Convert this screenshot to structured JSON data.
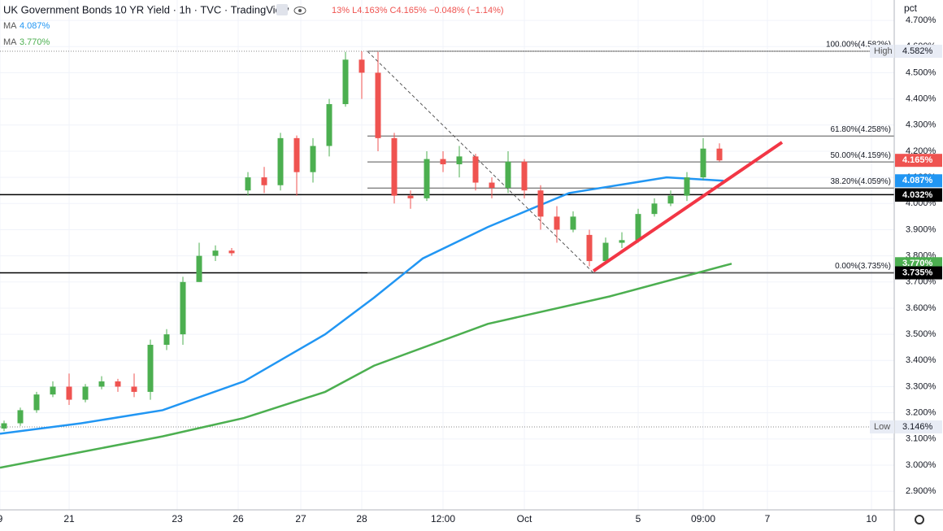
{
  "chart_data": {
    "type": "candlestick",
    "title": "UK Government Bonds 10 YR Yield · 1h · TVC · TradingView",
    "ohlc_text": "13%  L4.163%  C4.165%  −0.048% (−1.14%)",
    "y_unit": "pct",
    "up_color": "#4caf50",
    "down_color": "#ef5350",
    "grid": true,
    "xlim": [
      -0.25,
      54.75
    ],
    "ylim": [
      2.829,
      4.778
    ],
    "xticks": [
      {
        "value": -0.25,
        "label": "9"
      },
      {
        "value": 4,
        "label": "21"
      },
      {
        "value": 10.65,
        "label": "23"
      },
      {
        "value": 14.4,
        "label": "26"
      },
      {
        "value": 18.25,
        "label": "27"
      },
      {
        "value": 22,
        "label": "28"
      },
      {
        "value": 27,
        "label": "12:00"
      },
      {
        "value": 32,
        "label": "Oct"
      },
      {
        "value": 39,
        "label": "5"
      },
      {
        "value": 43,
        "label": "09:00"
      },
      {
        "value": 46.95,
        "label": "7"
      },
      {
        "value": 53.35,
        "label": "10"
      }
    ],
    "yticks": [
      {
        "value": 4.7,
        "label": "4.700%"
      },
      {
        "value": 4.6,
        "label": "4.600%"
      },
      {
        "value": 4.5,
        "label": "4.500%"
      },
      {
        "value": 4.4,
        "label": "4.400%"
      },
      {
        "value": 4.3,
        "label": "4.300%"
      },
      {
        "value": 4.2,
        "label": "4.200%"
      },
      {
        "value": 4.1,
        "label": "4.100%"
      },
      {
        "value": 4.0,
        "label": "4.000%"
      },
      {
        "value": 3.9,
        "label": "3.900%"
      },
      {
        "value": 3.8,
        "label": "3.800%"
      },
      {
        "value": 3.7,
        "label": "3.700%"
      },
      {
        "value": 3.6,
        "label": "3.600%"
      },
      {
        "value": 3.5,
        "label": "3.500%"
      },
      {
        "value": 3.4,
        "label": "3.400%"
      },
      {
        "value": 3.3,
        "label": "3.300%"
      },
      {
        "value": 3.2,
        "label": "3.200%"
      },
      {
        "value": 3.1,
        "label": "3.100%"
      },
      {
        "value": 3.0,
        "label": "3.000%"
      },
      {
        "value": 2.9,
        "label": "2.900%"
      }
    ],
    "x": [
      0,
      1,
      2,
      3,
      4,
      5,
      6,
      7,
      8,
      9,
      10,
      11,
      12,
      13,
      14,
      15,
      16,
      17,
      18,
      19,
      20,
      21,
      22,
      23,
      24,
      25,
      26,
      27,
      28,
      29,
      30,
      31,
      32,
      33,
      34,
      35,
      36,
      37,
      38,
      39,
      40,
      41,
      42,
      43,
      44
    ],
    "open": [
      3.14,
      3.16,
      3.21,
      3.27,
      3.3,
      3.25,
      3.3,
      3.32,
      3.3,
      3.28,
      3.46,
      3.5,
      3.7,
      3.8,
      3.82,
      4.05,
      4.1,
      4.07,
      4.25,
      4.12,
      4.22,
      4.38,
      4.55,
      4.5,
      4.25,
      4.03,
      4.02,
      4.17,
      4.15,
      4.18,
      4.08,
      4.06,
      4.16,
      4.05,
      3.95,
      3.9,
      3.88,
      3.78,
      3.85,
      3.86,
      3.96,
      4.0,
      4.03,
      4.1,
      4.21
    ],
    "high": [
      3.17,
      3.22,
      3.28,
      3.32,
      3.35,
      3.31,
      3.34,
      3.33,
      3.35,
      3.48,
      3.52,
      3.72,
      3.85,
      3.84,
      3.83,
      4.12,
      4.14,
      4.27,
      4.26,
      4.25,
      4.4,
      4.58,
      4.582,
      4.58,
      4.27,
      4.05,
      4.2,
      4.2,
      4.22,
      4.19,
      4.1,
      4.2,
      4.17,
      4.07,
      3.99,
      3.97,
      3.9,
      3.87,
      3.89,
      3.98,
      4.02,
      4.05,
      4.12,
      4.25,
      4.23
    ],
    "low": [
      3.13,
      3.15,
      3.2,
      3.26,
      3.23,
      3.24,
      3.29,
      3.28,
      3.26,
      3.25,
      3.44,
      3.46,
      3.7,
      3.78,
      3.8,
      4.03,
      4.04,
      4.05,
      4.03,
      4.08,
      4.18,
      4.37,
      4.4,
      4.2,
      4.0,
      3.98,
      4.01,
      4.12,
      4.1,
      4.05,
      4.02,
      4.04,
      4.02,
      3.9,
      3.85,
      3.89,
      3.76,
      3.77,
      3.83,
      3.85,
      3.95,
      3.99,
      4.01,
      4.09,
      4.16
    ],
    "close": [
      3.16,
      3.21,
      3.27,
      3.3,
      3.25,
      3.3,
      3.32,
      3.3,
      3.28,
      3.46,
      3.5,
      3.7,
      3.8,
      3.82,
      3.81,
      4.1,
      4.07,
      4.25,
      4.12,
      4.22,
      4.38,
      4.55,
      4.5,
      4.25,
      4.03,
      4.02,
      4.17,
      4.15,
      4.18,
      4.08,
      4.06,
      4.16,
      4.05,
      3.95,
      3.9,
      3.95,
      3.78,
      3.85,
      3.86,
      3.96,
      4.0,
      4.03,
      4.1,
      4.21,
      4.165
    ],
    "series": [
      {
        "name": "MA",
        "color": "#2196f3",
        "value": 4.087,
        "value_label": "4.087%",
        "x": [
          -0.25,
          4.75,
          9.75,
          14.75,
          19.75,
          22.75,
          25.75,
          29.75,
          34.75,
          40.75,
          44.25
        ],
        "values": [
          3.12,
          3.16,
          3.21,
          3.32,
          3.5,
          3.64,
          3.79,
          3.91,
          4.04,
          4.1,
          4.087
        ]
      },
      {
        "name": "MA",
        "color": "#4caf50",
        "value": 3.77,
        "value_label": "3.770%",
        "x": [
          -0.25,
          4.75,
          9.75,
          14.75,
          19.75,
          22.75,
          29.75,
          37.25,
          44.75
        ],
        "values": [
          2.99,
          3.05,
          3.11,
          3.18,
          3.28,
          3.38,
          3.54,
          3.645,
          3.77
        ]
      }
    ],
    "trendline": {
      "color": "#f23645",
      "x": [
        36.25,
        47.85
      ],
      "values": [
        3.742,
        4.234
      ]
    },
    "fib": {
      "x": [
        22.35,
        36.25
      ],
      "levels": [
        {
          "value": 4.582,
          "label": "100.00%(4.582%)"
        },
        {
          "value": 4.258,
          "label": "61.80%(4.258%)"
        },
        {
          "value": 4.159,
          "label": "50.00%(4.159%)"
        },
        {
          "value": 4.059,
          "label": "38.20%(4.059%)"
        },
        {
          "value": 3.735,
          "label": "0.00%(3.735%)"
        }
      ]
    },
    "hlines": [
      4.034,
      3.735
    ],
    "badges": [
      {
        "value": 4.582,
        "label": "4.582%",
        "tag": "High",
        "color": "#e8ecf5"
      },
      {
        "value": 4.165,
        "label": "4.165%",
        "color": "#ef5350"
      },
      {
        "value": 4.087,
        "label": "4.087%",
        "color": "#2196f3"
      },
      {
        "value": 4.034,
        "label": "4.034%",
        "color": "#2a2e39"
      },
      {
        "value": 4.032,
        "label": "4.032%",
        "color": "#000000"
      },
      {
        "value": 3.77,
        "label": "3.770%",
        "color": "#4caf50"
      },
      {
        "value": 3.735,
        "label": "3.735%",
        "color": "#000000"
      },
      {
        "value": 3.146,
        "label": "3.146%",
        "tag": "Low",
        "color": "#e8ecf5"
      }
    ]
  }
}
